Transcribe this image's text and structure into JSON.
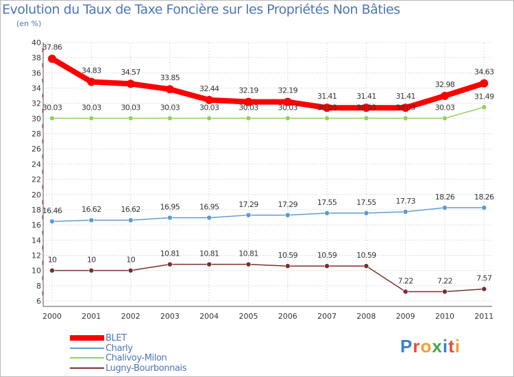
{
  "title": "Evolution du Taux de Taxe Foncière sur les Propriétés Non Bâties",
  "unit_label": "(en %)",
  "logo_text": "Proxiti",
  "chart_data": {
    "type": "line",
    "title": "Evolution du Taux de Taxe Foncière sur les Propriétés Non Bâties",
    "ylabel": "(en %)",
    "xlabel": "",
    "ylim": [
      6,
      40
    ],
    "yticks": [
      6,
      8,
      10,
      12,
      14,
      16,
      18,
      20,
      22,
      24,
      26,
      28,
      30,
      32,
      34,
      36,
      38,
      40
    ],
    "categories": [
      "2000",
      "2001",
      "2002",
      "2003",
      "2004",
      "2005",
      "2006",
      "2007",
      "2008",
      "2009",
      "2010",
      "2011"
    ],
    "grid": true,
    "legend_position": "bottom-left",
    "series": [
      {
        "name": "BLET",
        "color": "#ff0000",
        "values": [
          37.86,
          34.83,
          34.57,
          33.85,
          32.44,
          32.19,
          32.19,
          31.41,
          31.41,
          31.41,
          32.98,
          34.63
        ],
        "labels": [
          "37.86",
          "34.83",
          "34.57",
          "33.85",
          "32.44",
          "32.19",
          "32.19",
          "31.41",
          "31.41",
          "31.41",
          "32.98",
          "34.63"
        ]
      },
      {
        "name": "Charly",
        "color": "#5b9bd5",
        "values": [
          16.46,
          16.62,
          16.62,
          16.95,
          16.95,
          17.29,
          17.29,
          17.55,
          17.55,
          17.73,
          18.26,
          18.26
        ],
        "labels": [
          "16.46",
          "16.62",
          "16.62",
          "16.95",
          "16.95",
          "17.29",
          "17.29",
          "17.55",
          "17.55",
          "17.73",
          "18.26",
          "18.26"
        ]
      },
      {
        "name": "Chalivoy-Milon",
        "color": "#8fd15a",
        "values": [
          30.03,
          30.03,
          30.03,
          30.03,
          30.03,
          30.03,
          30.03,
          30.03,
          30.03,
          30.03,
          30.03,
          31.49
        ],
        "labels": [
          "30.03",
          "30.03",
          "30.03",
          "30.03",
          "30.03",
          "30.03",
          "30.03",
          "30.03",
          "30.03",
          "30.03",
          "30.03",
          "31.49"
        ]
      },
      {
        "name": "Lugny-Bourbonnais",
        "color": "#7a2e2e",
        "values": [
          10,
          10,
          10,
          10.81,
          10.81,
          10.81,
          10.59,
          10.59,
          10.59,
          7.22,
          7.22,
          7.57
        ],
        "labels": [
          "10",
          "10",
          "10",
          "10.81",
          "10.81",
          "10.81",
          "10.59",
          "10.59",
          "10.59",
          "7.22",
          "7.22",
          "7.57"
        ]
      }
    ]
  }
}
